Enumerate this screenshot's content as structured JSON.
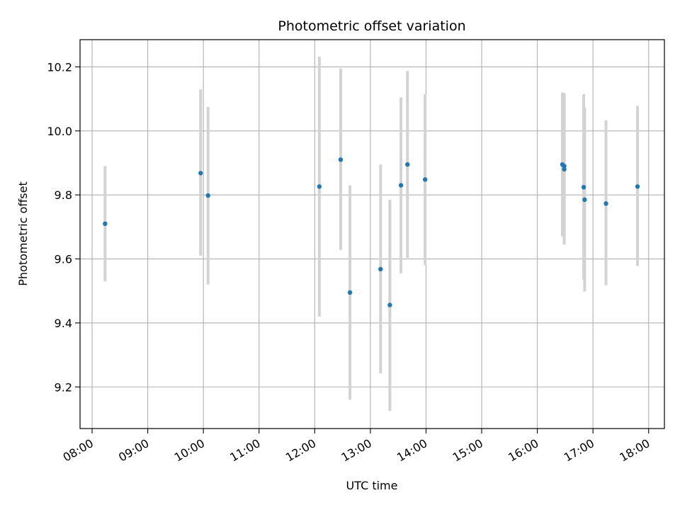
{
  "chart_data": {
    "type": "scatter",
    "title": "Photometric offset variation",
    "xlabel": "UTC time",
    "ylabel": "Photometric offset",
    "x_unit": "UTC time (HH:MM)",
    "xlim": [
      "07:47",
      "18:17"
    ],
    "ylim": [
      9.07,
      10.285
    ],
    "x_ticks": [
      "08:00",
      "09:00",
      "10:00",
      "11:00",
      "12:00",
      "13:00",
      "14:00",
      "15:00",
      "16:00",
      "17:00",
      "18:00"
    ],
    "y_ticks": [
      9.2,
      9.4,
      9.6,
      9.8,
      10.0,
      10.2
    ],
    "y_tick_labels": [
      "9.2",
      "9.4",
      "9.6",
      "9.8",
      "10.0",
      "10.2"
    ],
    "grid": true,
    "point_color": "#1f77b4",
    "errorbar_color": "#d3d3d3",
    "points": [
      {
        "x": "08:14",
        "y": 9.71,
        "yerr_low": 9.53,
        "yerr_high": 9.89
      },
      {
        "x": "09:57",
        "y": 9.868,
        "yerr_low": 9.61,
        "yerr_high": 10.13
      },
      {
        "x": "10:05",
        "y": 9.798,
        "yerr_low": 9.52,
        "yerr_high": 10.075
      },
      {
        "x": "12:05",
        "y": 9.826,
        "yerr_low": 9.42,
        "yerr_high": 10.232
      },
      {
        "x": "12:28",
        "y": 9.91,
        "yerr_low": 9.628,
        "yerr_high": 10.195
      },
      {
        "x": "12:38",
        "y": 9.495,
        "yerr_low": 9.16,
        "yerr_high": 9.83
      },
      {
        "x": "13:11",
        "y": 9.568,
        "yerr_low": 9.242,
        "yerr_high": 9.895
      },
      {
        "x": "13:21",
        "y": 9.456,
        "yerr_low": 9.125,
        "yerr_high": 9.785
      },
      {
        "x": "13:33",
        "y": 9.83,
        "yerr_low": 9.555,
        "yerr_high": 10.105
      },
      {
        "x": "13:40",
        "y": 9.895,
        "yerr_low": 9.603,
        "yerr_high": 10.187
      },
      {
        "x": "13:59",
        "y": 9.848,
        "yerr_low": 9.58,
        "yerr_high": 10.115
      },
      {
        "x": "16:27",
        "y": 9.895,
        "yerr_low": 9.67,
        "yerr_high": 10.12
      },
      {
        "x": "16:29",
        "y": 9.89,
        "yerr_low": 9.645,
        "yerr_high": 10.118
      },
      {
        "x": "16:29",
        "y": 9.88,
        "yerr_low": 9.645,
        "yerr_high": 10.118
      },
      {
        "x": "16:50",
        "y": 9.824,
        "yerr_low": 9.535,
        "yerr_high": 10.115
      },
      {
        "x": "16:51",
        "y": 9.785,
        "yerr_low": 9.498,
        "yerr_high": 10.073
      },
      {
        "x": "17:14",
        "y": 9.773,
        "yerr_low": 9.518,
        "yerr_high": 10.033
      },
      {
        "x": "17:48",
        "y": 9.826,
        "yerr_low": 9.578,
        "yerr_high": 10.078
      }
    ]
  }
}
